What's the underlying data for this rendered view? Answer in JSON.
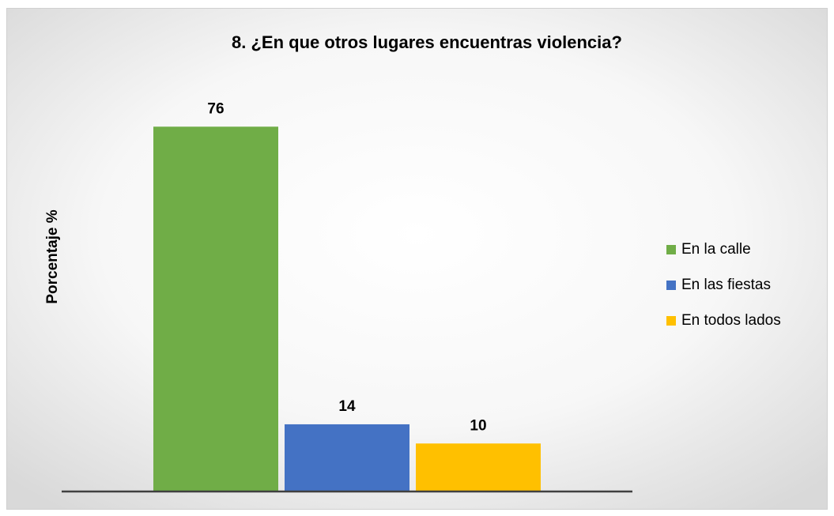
{
  "chart_data": {
    "type": "bar",
    "title": "8. ¿En que otros lugares encuentras violencia?",
    "y_label": "Porcentaje %",
    "categories": [
      null
    ],
    "series": [
      {
        "name": "En la calle",
        "color": "#70ad47",
        "values": [
          76
        ]
      },
      {
        "name": "En las fiestas",
        "color": "#4472c4",
        "values": [
          14
        ]
      },
      {
        "name": "En todos lados",
        "color": "#ffc000",
        "values": [
          10
        ]
      }
    ],
    "ylim": [
      0,
      80
    ],
    "legend": "right"
  }
}
